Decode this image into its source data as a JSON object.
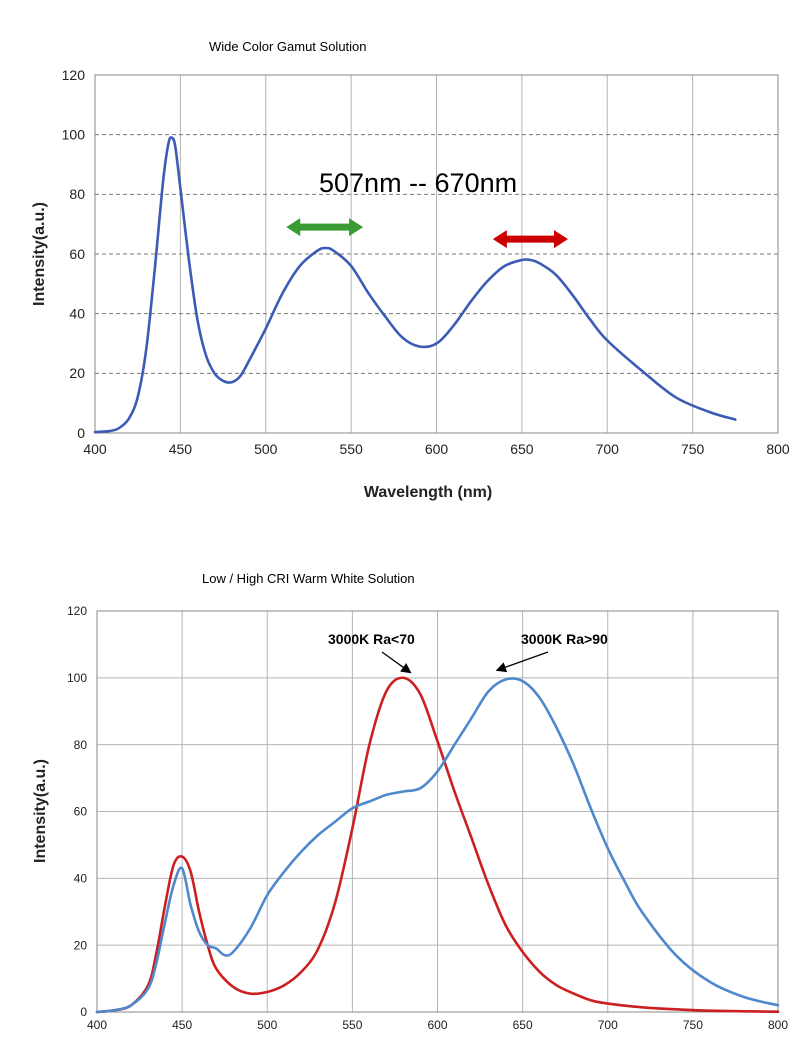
{
  "chart_data": [
    {
      "type": "line",
      "title": "Wide Color Gamut Solution",
      "xlabel": "Wavelength (nm)",
      "ylabel": "Intensity(a.u.)",
      "xlim": [
        400,
        800
      ],
      "ylim": [
        0,
        120
      ],
      "x_ticks": [
        "400",
        "450",
        "500",
        "550",
        "600",
        "650",
        "700",
        "750",
        "800"
      ],
      "y_ticks": [
        "0",
        "20",
        "40",
        "60",
        "80",
        "100",
        "120"
      ],
      "grid": {
        "x": "solid",
        "y": "dashed"
      },
      "annotation": "507nm -- 670nm",
      "markers": [
        {
          "name": "green-arrow",
          "x_from": 512,
          "x_to": 557,
          "y": 69,
          "color": "#3a9a33"
        },
        {
          "name": "red-arrow",
          "x_from": 633,
          "x_to": 677,
          "y": 65,
          "color": "#cc0000"
        }
      ],
      "series": [
        {
          "color": "#3b5bb5",
          "x": [
            400,
            410,
            415,
            420,
            425,
            430,
            435,
            440,
            443,
            445,
            447,
            450,
            455,
            460,
            465,
            470,
            475,
            480,
            485,
            490,
            500,
            510,
            520,
            530,
            535,
            540,
            550,
            560,
            570,
            580,
            590,
            600,
            610,
            620,
            630,
            640,
            650,
            655,
            660,
            670,
            680,
            690,
            700,
            720,
            740,
            760,
            775
          ],
          "y": [
            0.3,
            0.8,
            2,
            5,
            12,
            28,
            55,
            85,
            97,
            99,
            96,
            82,
            58,
            38,
            26,
            20,
            17.5,
            17,
            19,
            24,
            35,
            47,
            56,
            61,
            62,
            61,
            56,
            47,
            39,
            32,
            29,
            30,
            36,
            44,
            51,
            56,
            58,
            58,
            57,
            53,
            46,
            38,
            31,
            21,
            12,
            7,
            4.5
          ]
        }
      ]
    },
    {
      "type": "line",
      "title": "Low / High CRI Warm White Solution",
      "xlabel": "",
      "ylabel": "Intensity(a.u.)",
      "xlim": [
        400,
        800
      ],
      "ylim": [
        0,
        120
      ],
      "x_ticks": [
        "400",
        "450",
        "500",
        "550",
        "600",
        "650",
        "700",
        "750",
        "800"
      ],
      "y_ticks": [
        "0",
        "20",
        "40",
        "60",
        "80",
        "100",
        "120"
      ],
      "grid": {
        "x": "solid",
        "y": "solid"
      },
      "annotations": [
        {
          "text": "3000K Ra<70",
          "x": 580,
          "y": 100
        },
        {
          "text": "3000K Ra>90",
          "x": 645,
          "y": 100
        }
      ],
      "series": [
        {
          "color": "#cc1f1f",
          "x": [
            400,
            410,
            420,
            430,
            435,
            440,
            445,
            450,
            455,
            460,
            465,
            470,
            480,
            490,
            500,
            510,
            520,
            530,
            540,
            550,
            560,
            570,
            580,
            590,
            600,
            610,
            620,
            630,
            640,
            650,
            660,
            670,
            680,
            690,
            700,
            720,
            740,
            760,
            780,
            800
          ],
          "y": [
            0,
            0.5,
            2,
            8,
            18,
            32,
            44,
            46.5,
            42,
            30,
            20,
            13,
            7.5,
            5.5,
            6,
            8,
            12,
            19,
            33,
            55,
            80,
            96,
            100,
            95,
            81,
            66,
            52,
            38,
            26,
            18,
            12,
            8,
            5.5,
            3.5,
            2.5,
            1.4,
            0.8,
            0.4,
            0.2,
            0.1
          ]
        },
        {
          "color": "#4f88cc",
          "x": [
            400,
            410,
            420,
            430,
            435,
            440,
            445,
            450,
            455,
            460,
            465,
            470,
            475,
            480,
            490,
            500,
            510,
            520,
            530,
            540,
            550,
            560,
            570,
            580,
            590,
            600,
            610,
            620,
            630,
            640,
            650,
            660,
            670,
            680,
            690,
            700,
            710,
            720,
            740,
            760,
            780,
            800
          ],
          "y": [
            0,
            0.5,
            2,
            7,
            15,
            27,
            38,
            43,
            32,
            24,
            20,
            19,
            17,
            18,
            25,
            35,
            42,
            48,
            53,
            57,
            61,
            63,
            65,
            66,
            67,
            72,
            80,
            88,
            96,
            99.5,
            99,
            94,
            85,
            74,
            61,
            49,
            39,
            30,
            17,
            9,
            4.5,
            2
          ]
        }
      ]
    }
  ]
}
